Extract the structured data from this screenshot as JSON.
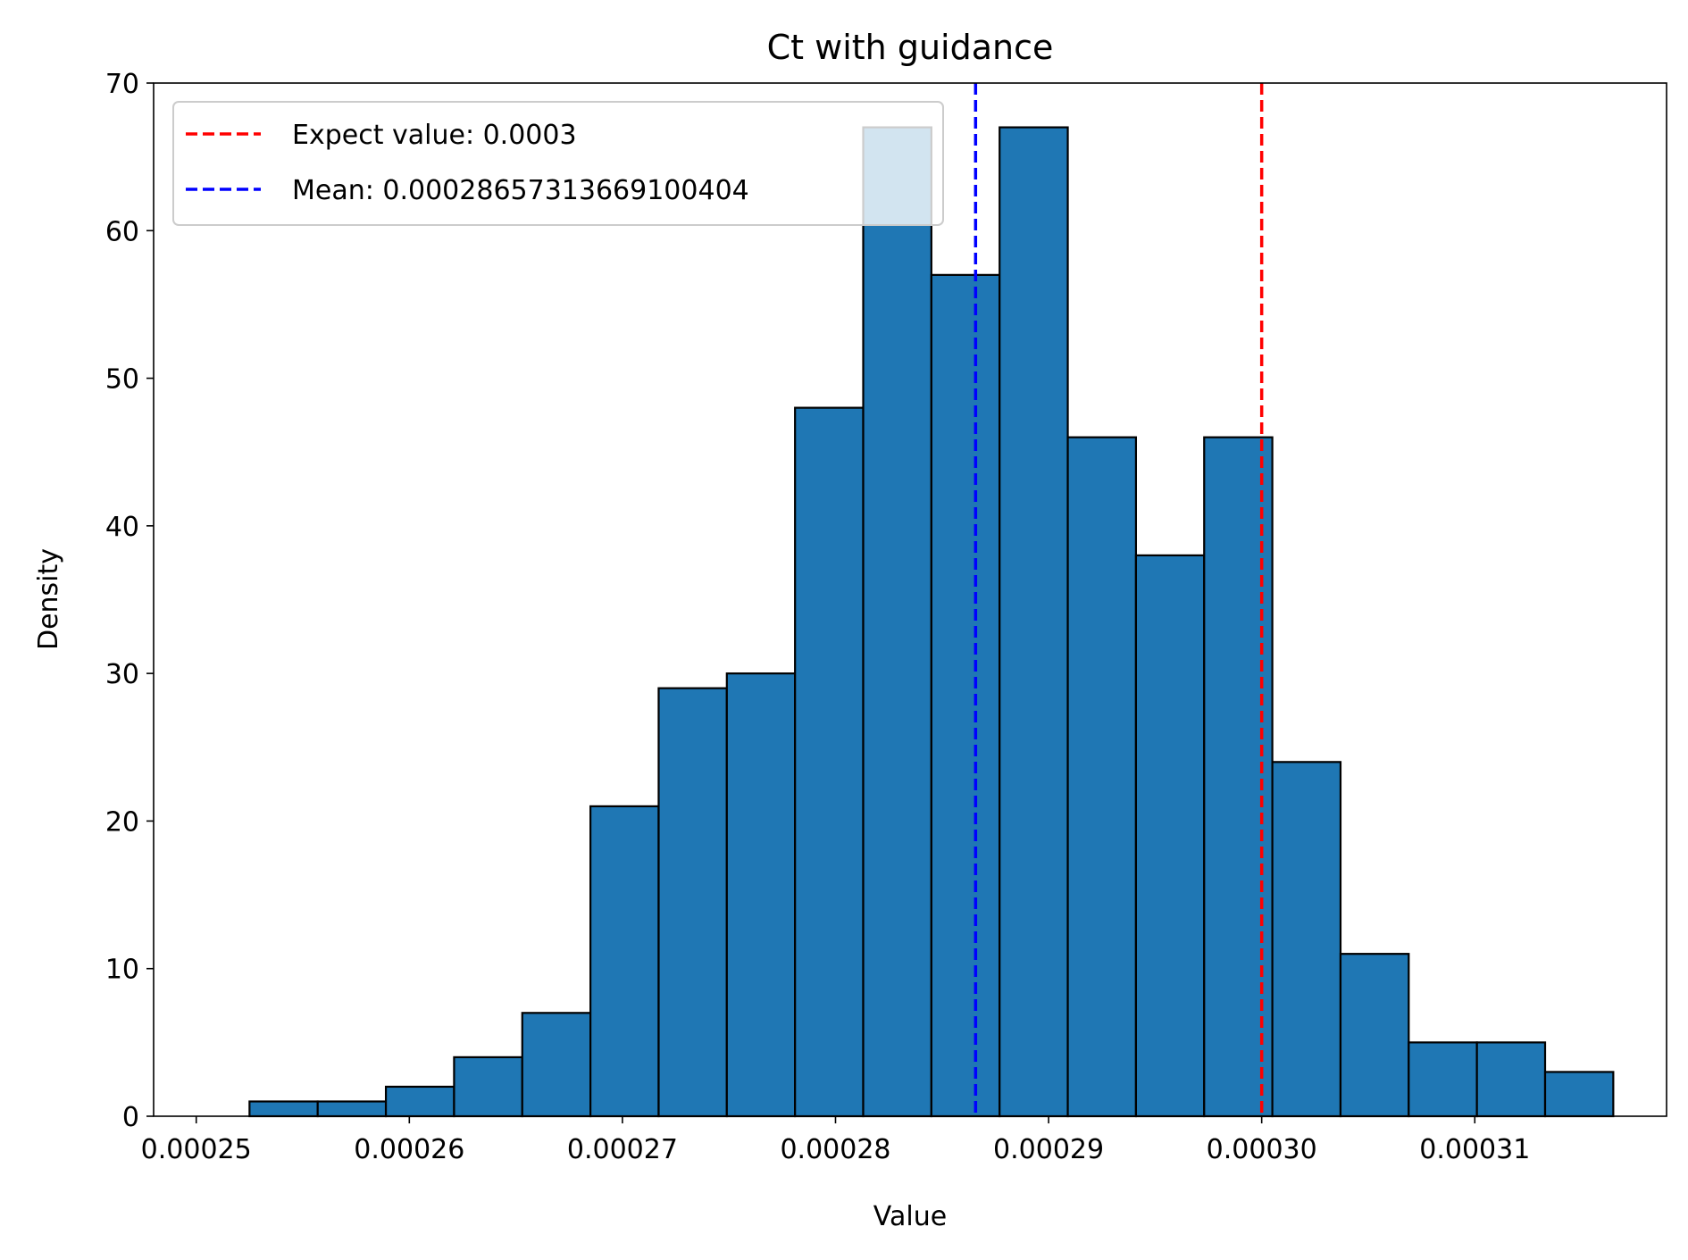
{
  "chart_data": {
    "type": "bar",
    "title": "Ct with guidance",
    "xlabel": "Value",
    "ylabel": "Density",
    "xlim": [
      0.000248,
      0.000319
    ],
    "ylim": [
      0,
      70
    ],
    "xticks": [
      0.00025,
      0.00026,
      0.00027,
      0.00028,
      0.00029,
      0.0003,
      0.00031
    ],
    "xtick_labels": [
      "0.00025",
      "0.00026",
      "0.00027",
      "0.00028",
      "0.00029",
      "0.00030",
      "0.00031"
    ],
    "yticks": [
      0,
      10,
      20,
      30,
      40,
      50,
      60,
      70
    ],
    "ytick_labels": [
      "0",
      "10",
      "20",
      "30",
      "40",
      "50",
      "60",
      "70"
    ],
    "bin_edges": [
      0.0002525,
      0.0002557,
      0.0002589,
      0.0002621,
      0.0002653,
      0.0002685,
      0.0002717,
      0.0002749,
      0.0002781,
      0.0002813,
      0.0002845,
      0.0002877,
      0.0002909,
      0.0002941,
      0.0002973,
      0.0003005,
      0.0003037,
      0.0003069,
      0.0003101,
      0.0003133,
      0.0003165
    ],
    "values": [
      1,
      1,
      2,
      4,
      7,
      21,
      29,
      30,
      48,
      67,
      57,
      67,
      46,
      38,
      46,
      24,
      11,
      5,
      5,
      3
    ],
    "bar_color": "#1f77b4",
    "edge_color": "#000000",
    "grid": false,
    "legend_position": "upper-left",
    "vlines": [
      {
        "name": "Expect value: 0.0003",
        "x": 0.0003,
        "color": "#ff0000",
        "style": "dashed"
      },
      {
        "name": "Mean: 0.00028657313669100404",
        "x": 0.00028657313669100404,
        "color": "#0000ff",
        "style": "dashed"
      }
    ]
  }
}
